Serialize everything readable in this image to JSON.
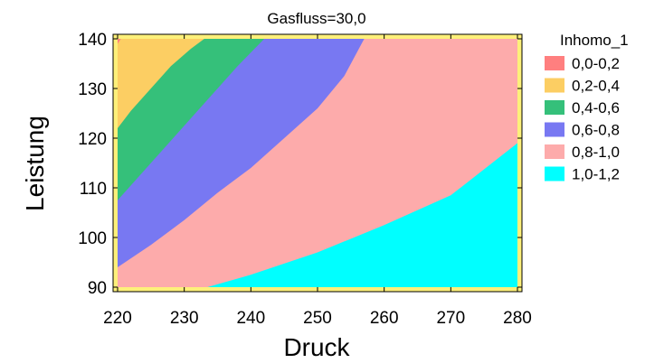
{
  "chart_data": {
    "type": "heatmap",
    "title": "Gasfluss=30,0",
    "xlabel": "Druck",
    "ylabel": "Leistung",
    "xlim": [
      220,
      280
    ],
    "ylim": [
      90,
      140
    ],
    "x_ticks": [
      "220",
      "230",
      "240",
      "250",
      "260",
      "270",
      "280"
    ],
    "y_ticks": [
      "90",
      "100",
      "110",
      "120",
      "130",
      "140"
    ],
    "legend_title": "Inhomo_1",
    "legend_position": "right",
    "bands": [
      {
        "label": "0,0-0,2",
        "color": "#ff7f7f"
      },
      {
        "label": "0,2-0,4",
        "color": "#fcce63"
      },
      {
        "label": "0,4-0,6",
        "color": "#35c07a"
      },
      {
        "label": "0,6-0,8",
        "color": "#7878f2"
      },
      {
        "label": "0,8-1,0",
        "color": "#fdabab"
      },
      {
        "label": "1,0-1,2",
        "color": "#00ffff"
      }
    ],
    "contours": [
      {
        "level": 0.2,
        "points": [
          [
            220.0,
            139.0
          ],
          [
            220.5,
            140.0
          ]
        ]
      },
      {
        "level": 0.4,
        "points": [
          [
            220.0,
            122.0
          ],
          [
            222.0,
            125.5
          ],
          [
            225.0,
            130.0
          ],
          [
            228.0,
            134.5
          ],
          [
            231.0,
            138.0
          ],
          [
            233.0,
            140.0
          ]
        ]
      },
      {
        "level": 0.6,
        "points": [
          [
            220.0,
            107.5
          ],
          [
            223.0,
            112.0
          ],
          [
            227.0,
            118.0
          ],
          [
            231.0,
            124.0
          ],
          [
            235.0,
            130.0
          ],
          [
            238.0,
            134.5
          ],
          [
            242.0,
            140.0
          ]
        ]
      },
      {
        "level": 0.8,
        "points": [
          [
            220.0,
            94.0
          ],
          [
            225.0,
            98.5
          ],
          [
            230.0,
            103.5
          ],
          [
            235.0,
            109.0
          ],
          [
            240.0,
            114.0
          ],
          [
            245.0,
            120.0
          ],
          [
            250.0,
            126.0
          ],
          [
            254.0,
            132.5
          ],
          [
            257.0,
            140.0
          ]
        ]
      },
      {
        "level": 1.0,
        "points": [
          [
            233.5,
            90.0
          ],
          [
            240.0,
            92.5
          ],
          [
            250.0,
            97.0
          ],
          [
            260.0,
            102.5
          ],
          [
            270.0,
            108.5
          ],
          [
            280.0,
            119.0
          ]
        ]
      }
    ]
  }
}
